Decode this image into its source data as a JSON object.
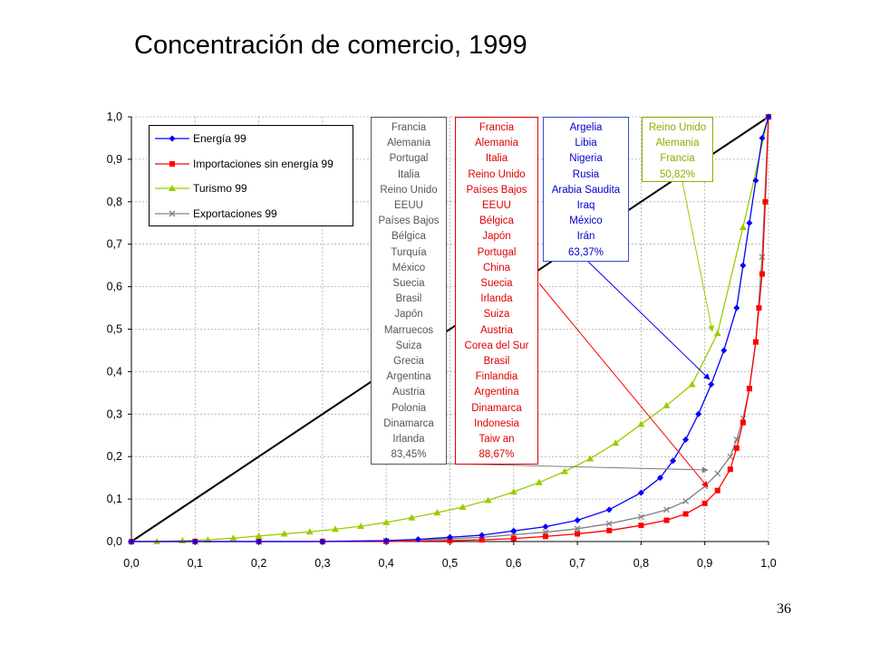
{
  "title": "Concentración de comercio, 1999",
  "page_number": "36",
  "colors": {
    "energy": "#0000ff",
    "imports": "#ff0000",
    "tourism": "#99cc00",
    "exports": "#808080",
    "diagonal": "#000000"
  },
  "boxes": {
    "exports": {
      "items": [
        "Francia",
        "Alemania",
        "Portugal",
        "Italia",
        "Reino Unido",
        "EEUU",
        "Países Bajos",
        "Bélgica",
        "Turquía",
        "México",
        "Suecia",
        "Brasil",
        "Japón",
        "Marruecos",
        "Suiza",
        "Grecia",
        "Argentina",
        "Austria",
        "Polonia",
        "Dinamarca",
        "Irlanda",
        "83,45%"
      ]
    },
    "imports": {
      "items": [
        "Francia",
        "Alemania",
        "Italia",
        "Reino Unido",
        "Países Bajos",
        "EEUU",
        "Bélgica",
        "Japón",
        "Portugal",
        "China",
        "Suecia",
        "Irlanda",
        "Suiza",
        "Austria",
        "Corea del Sur",
        "Brasil",
        "Finlandia",
        "Argentina",
        "Dinamarca",
        "Indonesia",
        "Taiw an",
        "88,67%"
      ]
    },
    "energy": {
      "items": [
        "Argelia",
        "Libia",
        "Nigeria",
        "Rusia",
        "Arabia Saudita",
        "Iraq",
        "México",
        "Irán",
        "63,37%"
      ]
    },
    "tourism": {
      "items": [
        "Reino Unido",
        "Alemania",
        "Francia",
        "50,82%"
      ]
    }
  },
  "chart_data": {
    "type": "line",
    "xlim": [
      0,
      1
    ],
    "ylim": [
      0,
      1
    ],
    "x_ticks": [
      "0,0",
      "0,1",
      "0,2",
      "0,3",
      "0,4",
      "0,5",
      "0,6",
      "0,7",
      "0,8",
      "0,9",
      "1,0"
    ],
    "y_ticks": [
      "0,0",
      "0,1",
      "0,2",
      "0,3",
      "0,4",
      "0,5",
      "0,6",
      "0,7",
      "0,8",
      "0,9",
      "1,0"
    ],
    "grid": true,
    "legend_position": "top-left",
    "reference_line": {
      "x": [
        0,
        1
      ],
      "y": [
        0,
        1
      ]
    },
    "series": [
      {
        "name": "Energía 99",
        "color": "#0000ff",
        "marker": "diamond",
        "x": [
          0,
          0.1,
          0.2,
          0.3,
          0.4,
          0.45,
          0.5,
          0.55,
          0.6,
          0.65,
          0.7,
          0.75,
          0.8,
          0.83,
          0.85,
          0.87,
          0.89,
          0.91,
          0.93,
          0.95,
          0.96,
          0.97,
          0.98,
          0.99,
          1.0
        ],
        "y": [
          0,
          0.0,
          0.0,
          0.0,
          0.002,
          0.005,
          0.01,
          0.015,
          0.025,
          0.035,
          0.05,
          0.075,
          0.115,
          0.15,
          0.19,
          0.24,
          0.3,
          0.37,
          0.45,
          0.55,
          0.65,
          0.75,
          0.85,
          0.95,
          1.0
        ]
      },
      {
        "name": "Importaciones sin energía 99",
        "color": "#ff0000",
        "marker": "square",
        "x": [
          0,
          0.1,
          0.2,
          0.3,
          0.4,
          0.5,
          0.55,
          0.6,
          0.65,
          0.7,
          0.75,
          0.8,
          0.84,
          0.87,
          0.9,
          0.92,
          0.94,
          0.95,
          0.96,
          0.97,
          0.98,
          0.985,
          0.99,
          0.995,
          1.0
        ],
        "y": [
          0,
          0.0,
          0.0,
          0.0,
          0.0,
          0.002,
          0.004,
          0.007,
          0.012,
          0.018,
          0.026,
          0.038,
          0.05,
          0.065,
          0.09,
          0.12,
          0.17,
          0.22,
          0.28,
          0.36,
          0.47,
          0.55,
          0.63,
          0.8,
          1.0
        ]
      },
      {
        "name": "Turismo 99",
        "color": "#99cc00",
        "marker": "triangle",
        "x": [
          0,
          0.04,
          0.08,
          0.12,
          0.16,
          0.2,
          0.24,
          0.28,
          0.32,
          0.36,
          0.4,
          0.44,
          0.48,
          0.52,
          0.56,
          0.6,
          0.64,
          0.68,
          0.72,
          0.76,
          0.8,
          0.84,
          0.88,
          0.92,
          0.96,
          1.0
        ],
        "y": [
          0,
          0.0,
          0.002,
          0.004,
          0.008,
          0.013,
          0.018,
          0.023,
          0.029,
          0.036,
          0.045,
          0.056,
          0.068,
          0.081,
          0.097,
          0.117,
          0.139,
          0.165,
          0.195,
          0.232,
          0.276,
          0.32,
          0.37,
          0.49,
          0.74,
          1.0
        ]
      },
      {
        "name": "Exportaciones 99",
        "color": "#808080",
        "marker": "x",
        "x": [
          0,
          0.1,
          0.2,
          0.3,
          0.4,
          0.5,
          0.55,
          0.6,
          0.65,
          0.7,
          0.75,
          0.8,
          0.84,
          0.87,
          0.9,
          0.92,
          0.94,
          0.95,
          0.96,
          0.97,
          0.98,
          0.99,
          1.0
        ],
        "y": [
          0,
          0.0,
          0.0,
          0.0,
          0.002,
          0.006,
          0.01,
          0.016,
          0.022,
          0.03,
          0.042,
          0.058,
          0.075,
          0.095,
          0.13,
          0.16,
          0.2,
          0.24,
          0.29,
          0.36,
          0.47,
          0.67,
          1.0
        ]
      }
    ]
  }
}
